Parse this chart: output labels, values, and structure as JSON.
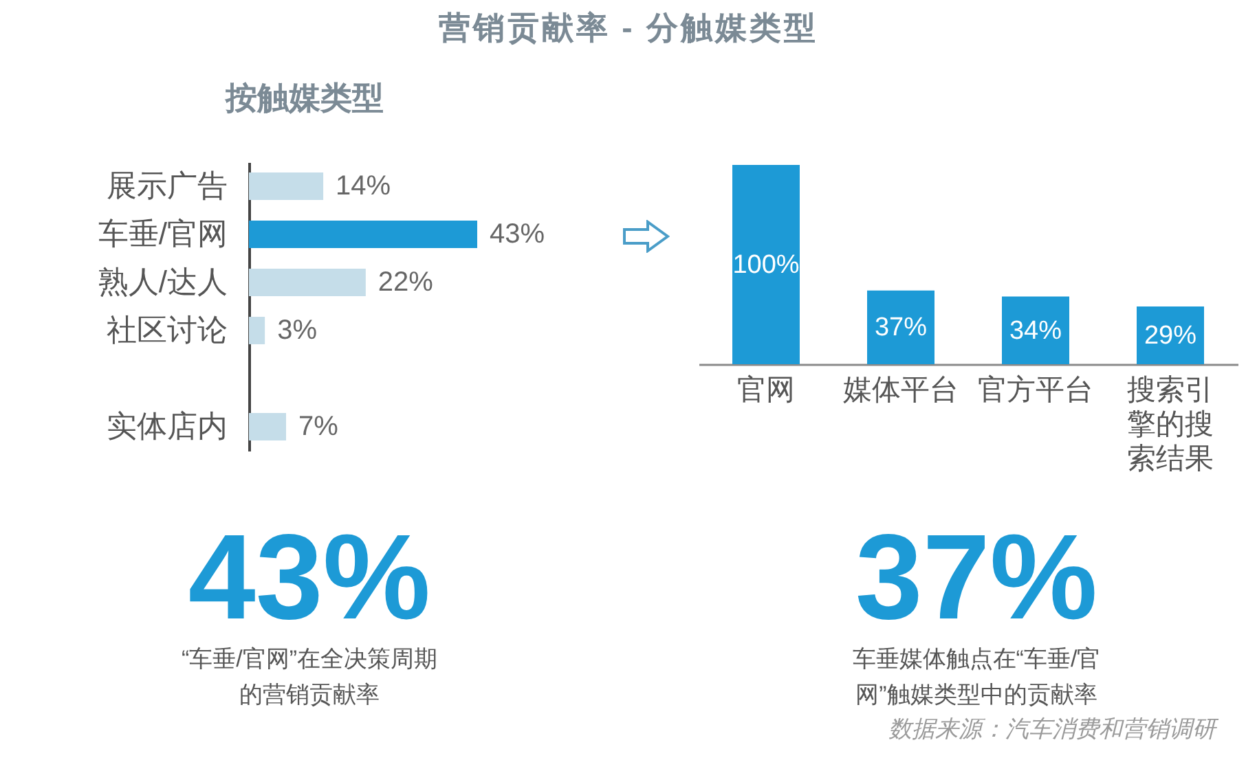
{
  "chart_data": [
    {
      "type": "bar",
      "title": "营销贡献率 - 分触媒类型",
      "subtitle": "按触媒类型",
      "orientation": "horizontal",
      "categories": [
        "展示广告",
        "车垂/官网",
        "熟人/达人",
        "社区讨论",
        null,
        "实体店内"
      ],
      "values": [
        14,
        43,
        22,
        3,
        null,
        7
      ],
      "colors": [
        "#c5dde9",
        "#1d9ad6",
        "#c5dde9",
        "#c5dde9",
        "#c5dde9",
        "#c5dde9"
      ],
      "value_labels": [
        "14%",
        "43%",
        "22%",
        "3%",
        null,
        "7%"
      ]
    },
    {
      "type": "bar",
      "categories": [
        "官网",
        "媒体平台",
        "官方平台",
        "搜索引擎的搜索结果"
      ],
      "values": [
        100,
        37,
        34,
        29
      ],
      "color": "#1d9ad6",
      "value_labels": [
        "100%",
        "37%",
        "34%",
        "29%"
      ]
    },
    {
      "type": "other",
      "title": "43%",
      "subtitle": "“车垂/官网”在全决策周期的营销贡献率",
      "color": "#1d9ad6"
    },
    {
      "type": "other",
      "title": "37%",
      "subtitle": "车垂媒体触点在“车垂/官网”触媒类型中的贡献率",
      "color": "#1d9ad6",
      "annotations": [
        "数据来源：汽车消费和营销调研"
      ]
    }
  ]
}
